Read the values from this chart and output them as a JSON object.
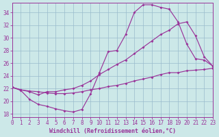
{
  "xlabel": "Windchill (Refroidissement éolien,°C)",
  "line_color": "#993399",
  "bg_color": "#cce8e8",
  "grid_color": "#99bbcc",
  "xlim": [
    0,
    23
  ],
  "ylim": [
    17.5,
    35.5
  ],
  "xticks": [
    0,
    1,
    2,
    3,
    4,
    5,
    6,
    7,
    8,
    9,
    10,
    11,
    12,
    13,
    14,
    15,
    16,
    17,
    18,
    19,
    20,
    21,
    22,
    23
  ],
  "yticks": [
    18,
    20,
    22,
    24,
    26,
    28,
    30,
    32,
    34
  ],
  "line1_x": [
    0,
    1,
    2,
    3,
    4,
    5,
    6,
    7,
    8,
    9,
    10,
    11,
    12,
    13,
    14,
    15,
    16,
    17,
    18,
    19,
    20,
    21,
    22,
    23
  ],
  "line1_y": [
    22.2,
    21.7,
    20.3,
    19.5,
    19.2,
    18.8,
    18.5,
    18.3,
    18.7,
    21.2,
    24.5,
    27.8,
    28.0,
    30.5,
    34.0,
    35.2,
    35.2,
    34.8,
    34.5,
    32.5,
    29.0,
    26.7,
    26.5,
    25.5
  ],
  "line2_x": [
    0,
    1,
    2,
    3,
    4,
    5,
    6,
    7,
    8,
    9,
    10,
    11,
    12,
    13,
    14,
    15,
    16,
    17,
    18,
    19,
    20,
    21,
    22,
    23
  ],
  "line2_y": [
    22.2,
    21.8,
    21.5,
    21.0,
    21.5,
    21.5,
    21.8,
    22.0,
    22.5,
    23.2,
    24.2,
    25.0,
    25.8,
    26.5,
    27.5,
    28.5,
    29.5,
    30.5,
    31.2,
    32.2,
    32.5,
    30.3,
    27.0,
    25.5
  ],
  "line3_x": [
    0,
    1,
    2,
    3,
    4,
    5,
    6,
    7,
    8,
    9,
    10,
    11,
    12,
    13,
    14,
    15,
    16,
    17,
    18,
    19,
    20,
    21,
    22,
    23
  ],
  "line3_y": [
    22.2,
    21.8,
    21.6,
    21.5,
    21.3,
    21.2,
    21.2,
    21.3,
    21.5,
    21.8,
    22.0,
    22.3,
    22.5,
    22.8,
    23.2,
    23.5,
    23.8,
    24.2,
    24.5,
    24.5,
    24.8,
    24.9,
    25.0,
    25.2
  ],
  "tick_fontsize": 5.5,
  "xlabel_fontsize": 6.0
}
